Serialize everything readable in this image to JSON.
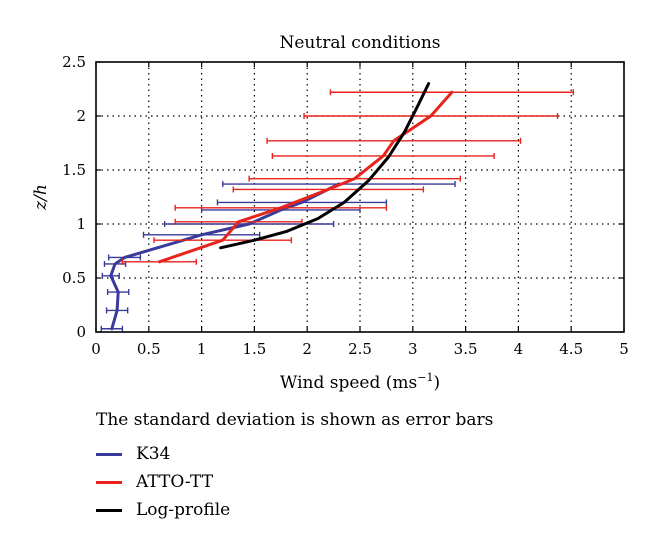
{
  "chart_data": {
    "type": "line",
    "title": "Neutral conditions",
    "xlabel": "Wind speed (ms",
    "xlabel_sup": "−1",
    "xlabel_close": ")",
    "ylabel": "z/h",
    "xlim": [
      0,
      5
    ],
    "ylim": [
      0,
      2.5
    ],
    "xticks": [
      "0",
      "0.5",
      "1",
      "1.5",
      "2",
      "2.5",
      "3",
      "3.5",
      "4",
      "4.5",
      "5"
    ],
    "yticks": [
      "0",
      "0.5",
      "1",
      "1.5",
      "2",
      "2.5"
    ],
    "grid": "dotted",
    "legend_note": "The standard deviation is shown as error bars",
    "series": [
      {
        "name": "K34",
        "color": "#3a3a9a",
        "points": [
          {
            "x": 0.15,
            "y": 0.03,
            "xerr": 0.1
          },
          {
            "x": 0.2,
            "y": 0.2,
            "xerr": 0.1
          },
          {
            "x": 0.21,
            "y": 0.37,
            "xerr": 0.1
          },
          {
            "x": 0.14,
            "y": 0.52,
            "xerr": 0.08
          },
          {
            "x": 0.18,
            "y": 0.63,
            "xerr": 0.1
          },
          {
            "x": 0.27,
            "y": 0.69,
            "xerr": 0.15
          },
          {
            "x": 1.0,
            "y": 0.9,
            "xerr": 0.55
          },
          {
            "x": 1.45,
            "y": 1.0,
            "xerr": 0.8
          },
          {
            "x": 1.75,
            "y": 1.13,
            "xerr": 0.75
          },
          {
            "x": 1.95,
            "y": 1.2,
            "xerr": 0.8
          },
          {
            "x": 2.3,
            "y": 1.37,
            "xerr": 1.1
          }
        ]
      },
      {
        "name": "ATTO-TT",
        "color": "#e8231c",
        "points": [
          {
            "x": 0.6,
            "y": 0.65,
            "xerr": 0.35
          },
          {
            "x": 1.2,
            "y": 0.85,
            "xerr": 0.65
          },
          {
            "x": 1.35,
            "y": 1.02,
            "xerr": 0.6
          },
          {
            "x": 1.75,
            "y": 1.15,
            "xerr": 1.0
          },
          {
            "x": 2.2,
            "y": 1.32,
            "xerr": 0.9
          },
          {
            "x": 2.45,
            "y": 1.42,
            "xerr": 1.0
          },
          {
            "x": 2.72,
            "y": 1.63,
            "xerr": 1.05
          },
          {
            "x": 2.82,
            "y": 1.77,
            "xerr": 1.2
          },
          {
            "x": 3.17,
            "y": 2.0,
            "xerr": 1.2
          },
          {
            "x": 3.37,
            "y": 2.22,
            "xerr": 1.15
          }
        ]
      },
      {
        "name": "Log-profile",
        "color": "#000000",
        "points": [
          {
            "x": 1.18,
            "y": 0.78
          },
          {
            "x": 1.5,
            "y": 0.85
          },
          {
            "x": 1.8,
            "y": 0.93
          },
          {
            "x": 2.1,
            "y": 1.05
          },
          {
            "x": 2.35,
            "y": 1.2
          },
          {
            "x": 2.58,
            "y": 1.4
          },
          {
            "x": 2.77,
            "y": 1.62
          },
          {
            "x": 2.92,
            "y": 1.85
          },
          {
            "x": 3.05,
            "y": 2.1
          },
          {
            "x": 3.15,
            "y": 2.3
          }
        ]
      }
    ]
  }
}
